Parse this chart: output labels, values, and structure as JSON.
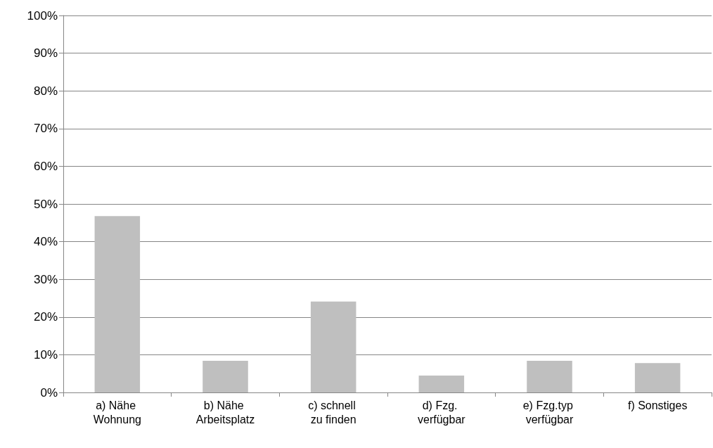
{
  "chart_data": {
    "type": "bar",
    "categories": [
      "a) Nähe Wohnung",
      "b) Nähe Arbeitsplatz",
      "c) schnell zu finden",
      "d) Fzg. verfügbar",
      "e) Fzg.typ verfügbar",
      "f) Sonstiges"
    ],
    "values": [
      46.8,
      8.4,
      24.1,
      4.5,
      8.4,
      7.8
    ],
    "color": "#bfbfbf",
    "ylim": [
      0,
      100
    ],
    "yticks": [
      {
        "value": 0,
        "label": "0%"
      },
      {
        "value": 10,
        "label": "10%"
      },
      {
        "value": 20,
        "label": "20%"
      },
      {
        "value": 30,
        "label": "30%"
      },
      {
        "value": 40,
        "label": "40%"
      },
      {
        "value": 50,
        "label": "50%"
      },
      {
        "value": 60,
        "label": "60%"
      },
      {
        "value": 70,
        "label": "70%"
      },
      {
        "value": 80,
        "label": "80%"
      },
      {
        "value": 90,
        "label": "90%"
      },
      {
        "value": 100,
        "label": "100%"
      }
    ],
    "grid": "y"
  }
}
